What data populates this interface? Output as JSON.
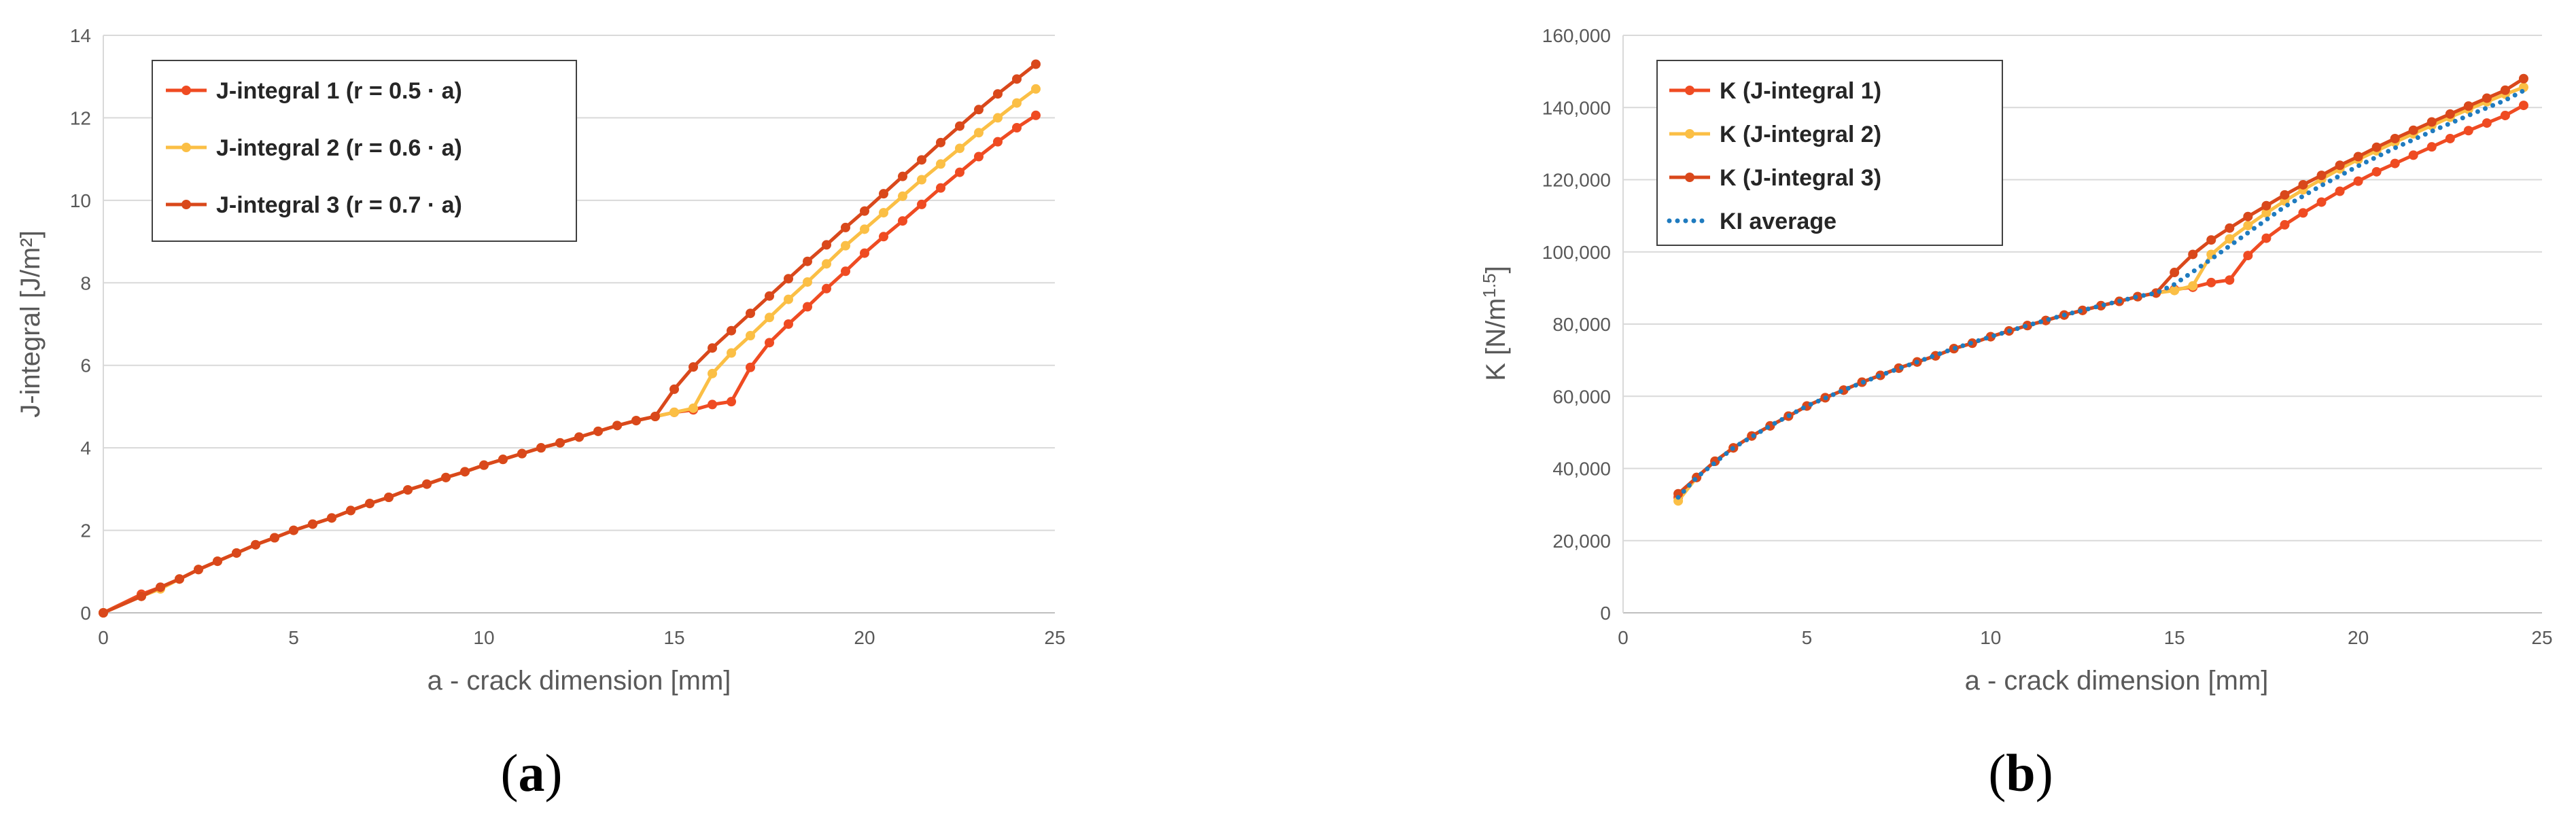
{
  "chart_data": [
    {
      "type": "line",
      "panel_label": "a",
      "xlabel": "a - crack dimension [mm]",
      "ylabel": "J-integral [J/m²]",
      "xlim": [
        0,
        25
      ],
      "ylim": [
        0,
        14
      ],
      "x_ticks": [
        "0",
        "5",
        "10",
        "15",
        "20",
        "25"
      ],
      "y_ticks": [
        "0",
        "2",
        "4",
        "6",
        "8",
        "10",
        "12",
        "14"
      ],
      "grid": "horizontal",
      "legend_position": "top-left",
      "series": [
        {
          "name": "J-integral 1 (r = 0.5 · a)",
          "color": "#ef4b22",
          "x": [
            0,
            1,
            1.5,
            2,
            2.5,
            3,
            3.5,
            4,
            4.5,
            5,
            5.5,
            6,
            6.5,
            7,
            7.5,
            8,
            8.5,
            9,
            9.5,
            10,
            10.5,
            11,
            11.5,
            12,
            12.5,
            13,
            13.5,
            14,
            14.5,
            15,
            15.5,
            16,
            16.5,
            17,
            17.5,
            18,
            18.5,
            19,
            19.5,
            20,
            20.5,
            21,
            21.5,
            22,
            22.5,
            23,
            23.5,
            24,
            24.5
          ],
          "y": [
            0,
            0.45,
            0.62,
            0.82,
            1.05,
            1.25,
            1.45,
            1.65,
            1.82,
            2.0,
            2.15,
            2.3,
            2.48,
            2.65,
            2.8,
            2.98,
            3.12,
            3.28,
            3.42,
            3.58,
            3.72,
            3.86,
            4.0,
            4.12,
            4.26,
            4.4,
            4.54,
            4.66,
            4.76,
            4.86,
            4.92,
            5.05,
            5.12,
            5.95,
            6.55,
            7.0,
            7.42,
            7.86,
            8.28,
            8.72,
            9.12,
            9.5,
            9.9,
            10.3,
            10.68,
            11.06,
            11.42,
            11.76,
            12.06
          ]
        },
        {
          "name": "J-integral 2 (r = 0.6 · a)",
          "color": "#fbbf45",
          "x": [
            0,
            1,
            1.5,
            2,
            2.5,
            3,
            3.5,
            4,
            4.5,
            5,
            5.5,
            6,
            6.5,
            7,
            7.5,
            8,
            8.5,
            9,
            9.5,
            10,
            10.5,
            11,
            11.5,
            12,
            12.5,
            13,
            13.5,
            14,
            14.5,
            15,
            15.5,
            16,
            16.5,
            17,
            17.5,
            18,
            18.5,
            19,
            19.5,
            20,
            20.5,
            21,
            21.5,
            22,
            22.5,
            23,
            23.5,
            24,
            24.5
          ],
          "y": [
            0,
            0.4,
            0.58,
            0.82,
            1.05,
            1.25,
            1.45,
            1.65,
            1.82,
            2.0,
            2.15,
            2.3,
            2.48,
            2.65,
            2.8,
            2.98,
            3.12,
            3.28,
            3.42,
            3.58,
            3.72,
            3.86,
            4.0,
            4.12,
            4.26,
            4.4,
            4.54,
            4.66,
            4.76,
            4.86,
            4.96,
            5.8,
            6.3,
            6.72,
            7.16,
            7.6,
            8.02,
            8.46,
            8.9,
            9.3,
            9.7,
            10.1,
            10.5,
            10.88,
            11.26,
            11.64,
            12.0,
            12.36,
            12.7
          ]
        },
        {
          "name": "J-integral 3 (r = 0.7 · a)",
          "color": "#d9481b",
          "x": [
            0,
            1,
            1.5,
            2,
            2.5,
            3,
            3.5,
            4,
            4.5,
            5,
            5.5,
            6,
            6.5,
            7,
            7.5,
            8,
            8.5,
            9,
            9.5,
            10,
            10.5,
            11,
            11.5,
            12,
            12.5,
            13,
            13.5,
            14,
            14.5,
            15,
            15.5,
            16,
            16.5,
            17,
            17.5,
            18,
            18.5,
            19,
            19.5,
            20,
            20.5,
            21,
            21.5,
            22,
            22.5,
            23,
            23.5,
            24,
            24.5
          ],
          "y": [
            0,
            0.4,
            0.62,
            0.82,
            1.05,
            1.25,
            1.45,
            1.65,
            1.82,
            2.0,
            2.15,
            2.3,
            2.48,
            2.65,
            2.8,
            2.98,
            3.12,
            3.28,
            3.42,
            3.58,
            3.72,
            3.86,
            4.0,
            4.12,
            4.26,
            4.4,
            4.54,
            4.66,
            4.76,
            5.42,
            5.96,
            6.42,
            6.84,
            7.26,
            7.68,
            8.1,
            8.52,
            8.92,
            9.34,
            9.74,
            10.16,
            10.58,
            10.98,
            11.4,
            11.8,
            12.2,
            12.58,
            12.94,
            13.3
          ]
        }
      ]
    },
    {
      "type": "line",
      "panel_label": "b",
      "xlabel": "a - crack dimension [mm]",
      "ylabel": "K [N/m1.5]",
      "ylabel_main": "K [N/m",
      "ylabel_sup": "1.5",
      "ylabel_end": "]",
      "xlim": [
        0,
        25
      ],
      "ylim": [
        0,
        160000
      ],
      "x_ticks": [
        "0",
        "5",
        "10",
        "15",
        "20",
        "25"
      ],
      "y_ticks": [
        "0",
        "20,000",
        "40,000",
        "60,000",
        "80,000",
        "100,000",
        "120,000",
        "140,000",
        "160,000"
      ],
      "grid": "horizontal",
      "legend_position": "top-left",
      "series": [
        {
          "name": "K (J-integral 1)",
          "color": "#ef4b22",
          "x": [
            1.5,
            2,
            2.5,
            3,
            3.5,
            4,
            4.5,
            5,
            5.5,
            6,
            6.5,
            7,
            7.5,
            8,
            8.5,
            9,
            9.5,
            10,
            10.5,
            11,
            11.5,
            12,
            12.5,
            13,
            13.5,
            14,
            14.5,
            15,
            15.5,
            16,
            16.5,
            17,
            17.5,
            18,
            18.5,
            19,
            19.5,
            20,
            20.5,
            21,
            21.5,
            22,
            22.5,
            23,
            23.5,
            24,
            24.5
          ],
          "y": [
            32000,
            37500,
            42000,
            45700,
            49000,
            51800,
            54500,
            57300,
            59600,
            61700,
            63900,
            65800,
            67800,
            69500,
            71200,
            73200,
            74700,
            76500,
            78100,
            79600,
            81000,
            82500,
            83800,
            85100,
            86300,
            87600,
            88600,
            89600,
            90200,
            91500,
            92200,
            99000,
            103800,
            107500,
            110800,
            113800,
            116800,
            119600,
            122200,
            124500,
            126800,
            129100,
            131400,
            133600,
            135700,
            137800,
            140600
          ]
        },
        {
          "name": "K (J-integral 2)",
          "color": "#fbbf45",
          "x": [
            1.5,
            2,
            2.5,
            3,
            3.5,
            4,
            4.5,
            5,
            5.5,
            6,
            6.5,
            7,
            7.5,
            8,
            8.5,
            9,
            9.5,
            10,
            10.5,
            11,
            11.5,
            12,
            12.5,
            13,
            13.5,
            14,
            14.5,
            15,
            15.5,
            16,
            16.5,
            17,
            17.5,
            18,
            18.5,
            19,
            19.5,
            20,
            20.5,
            21,
            21.5,
            22,
            22.5,
            23,
            23.5,
            24,
            24.5
          ],
          "y": [
            31000,
            37500,
            42000,
            45700,
            49000,
            51800,
            54500,
            57300,
            59600,
            61700,
            63900,
            65800,
            67800,
            69500,
            71200,
            73200,
            74700,
            76500,
            78100,
            79600,
            81000,
            82500,
            83800,
            85100,
            86300,
            87600,
            88600,
            89300,
            90600,
            99300,
            103600,
            107300,
            110800,
            114100,
            117200,
            120100,
            123000,
            125600,
            128000,
            130400,
            132700,
            135000,
            137300,
            139500,
            141600,
            143700,
            145600
          ]
        },
        {
          "name": "K (J-integral 3)",
          "color": "#d9481b",
          "x": [
            1.5,
            2,
            2.5,
            3,
            3.5,
            4,
            4.5,
            5,
            5.5,
            6,
            6.5,
            7,
            7.5,
            8,
            8.5,
            9,
            9.5,
            10,
            10.5,
            11,
            11.5,
            12,
            12.5,
            13,
            13.5,
            14,
            14.5,
            15,
            15.5,
            16,
            16.5,
            17,
            17.5,
            18,
            18.5,
            19,
            19.5,
            20,
            20.5,
            21,
            21.5,
            22,
            22.5,
            23,
            23.5,
            24,
            24.5
          ],
          "y": [
            33000,
            37500,
            42000,
            45700,
            49000,
            51800,
            54500,
            57300,
            59600,
            61700,
            63900,
            65800,
            67800,
            69500,
            71200,
            73200,
            74700,
            76500,
            78100,
            79600,
            81000,
            82500,
            83800,
            85100,
            86300,
            87600,
            88600,
            94300,
            99300,
            103300,
            106600,
            109800,
            112800,
            115800,
            118600,
            121200,
            124000,
            126400,
            129000,
            131400,
            133700,
            136000,
            138200,
            140400,
            142600,
            144800,
            148000
          ]
        },
        {
          "name": "KI average",
          "color": "#1f7bbf",
          "style": "dotted",
          "x": [
            1.5,
            2,
            3,
            4,
            5,
            6,
            7,
            8,
            9,
            10,
            11,
            12,
            13,
            14,
            14.5,
            15,
            16,
            17,
            18,
            19,
            20,
            21,
            22,
            23,
            24,
            24.5
          ],
          "y": [
            32000,
            37500,
            45700,
            51800,
            57300,
            61700,
            65800,
            69500,
            73200,
            76500,
            79600,
            82500,
            85100,
            87600,
            88600,
            91000,
            98000,
            105300,
            112500,
            118400,
            123800,
            128800,
            133400,
            137800,
            142000,
            144700
          ]
        }
      ]
    }
  ]
}
